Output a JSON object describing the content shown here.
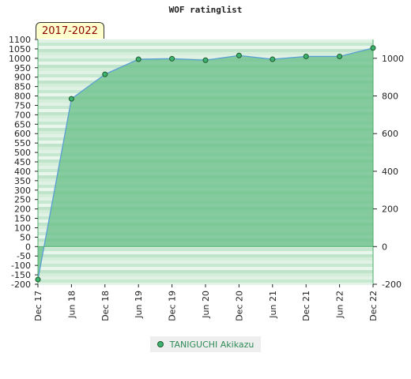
{
  "chart_data": {
    "type": "area",
    "title": "WOF ratinglist",
    "period_badge": "2017-2022",
    "x": [
      "Dec 17",
      "Jun 18",
      "Dec 18",
      "Jun 19",
      "Dec 19",
      "Jun 20",
      "Dec 20",
      "Jun 21",
      "Dec 21",
      "Jun 22",
      "Dec 22"
    ],
    "series": [
      {
        "name": "TANIGUCHI Akikazu",
        "values": [
          -175,
          785,
          915,
          995,
          998,
          990,
          1015,
          995,
          1010,
          1010,
          1055
        ]
      }
    ],
    "ylim": [
      -200,
      1100
    ],
    "left_ticks": [
      -200,
      -150,
      -100,
      -50,
      0,
      50,
      100,
      150,
      200,
      250,
      300,
      350,
      400,
      450,
      500,
      550,
      600,
      650,
      700,
      750,
      800,
      850,
      900,
      950,
      1000,
      1050,
      1100
    ],
    "right_ticks": [
      -200,
      0,
      200,
      400,
      600,
      800,
      1000
    ],
    "grid": false,
    "legend_position": "bottom-center",
    "colors": {
      "fill": "#6cc08a",
      "line": "#5a9fd4",
      "marker": "#3cb371",
      "title": "#222222",
      "badge_text": "#8b0000",
      "legend_text": "#2e8b57"
    }
  }
}
